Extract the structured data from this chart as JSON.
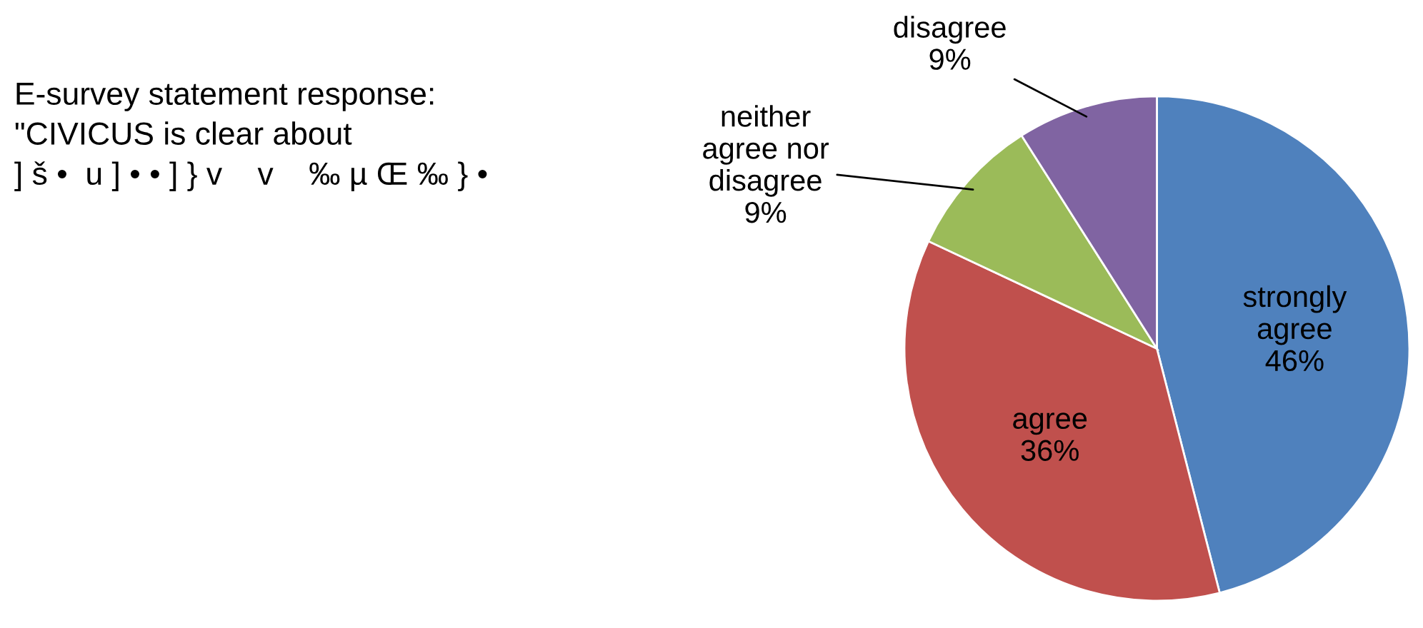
{
  "chart_data": {
    "type": "pie",
    "title": "E-survey statement response:\n\"CIVICUS is clear about\n] š •  u ] • • ] } v    v    ‰ µ Œ ‰ } •",
    "categories": [
      "strongly\nagree",
      "agree",
      "neither\nagree nor\ndisagree",
      "disagree"
    ],
    "values": [
      46,
      36,
      9,
      9
    ],
    "colors": [
      "#4f81bd",
      "#c0504d",
      "#9bbb59",
      "#8064a2"
    ],
    "value_labels": [
      "46%",
      "36%",
      "9%",
      "9%"
    ],
    "legend": false
  }
}
